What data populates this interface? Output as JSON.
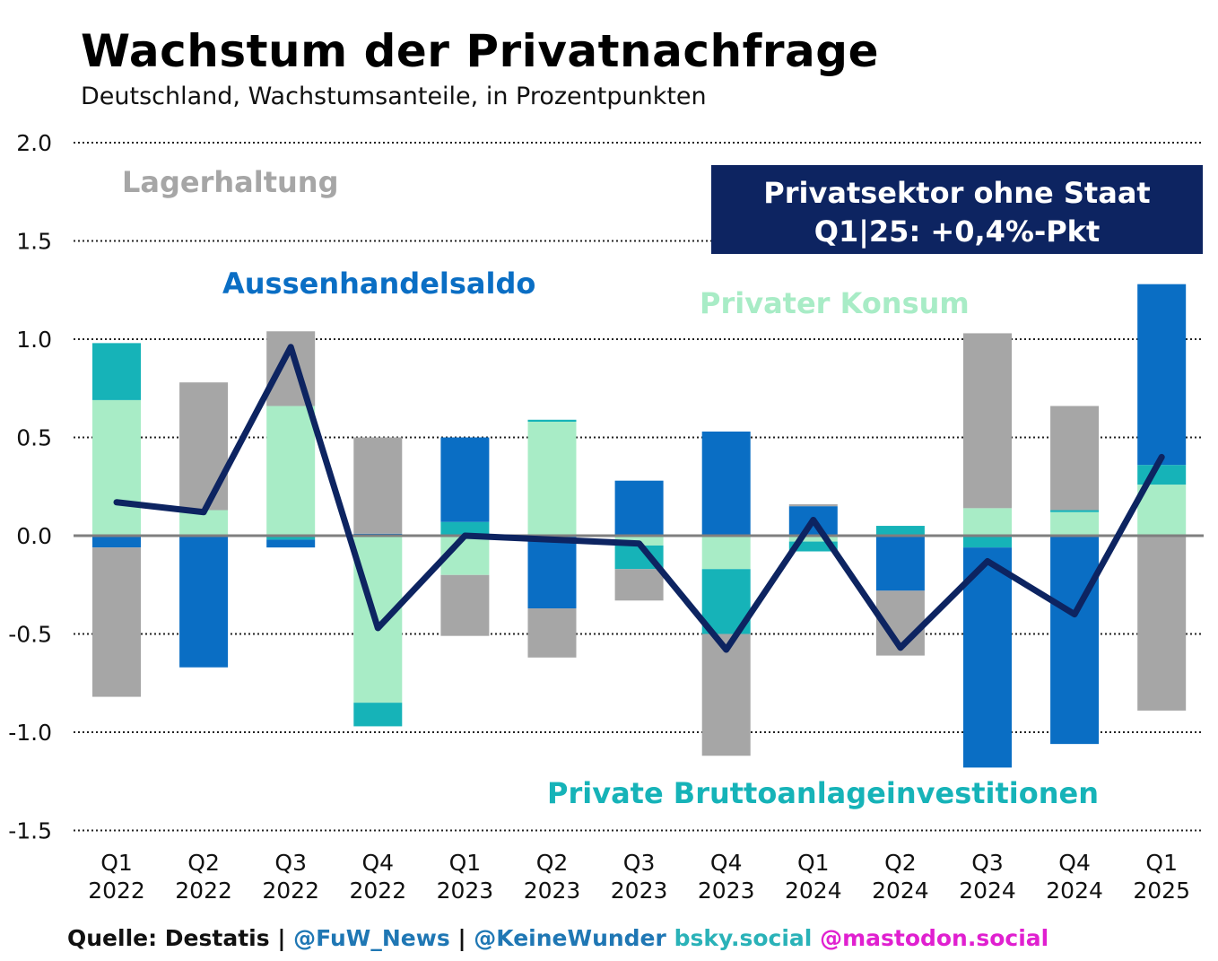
{
  "title": "Wachstum der Privatnachfrage",
  "subtitle": "Deutschland, Wachstumsanteile, in Prozentpunkten",
  "info_box": {
    "line1": "Privatsektor ohne Staat",
    "line2": "Q1|25: +0,4%-Pkt",
    "bg": "#0d2461",
    "fg": "#ffffff"
  },
  "footer": {
    "source": "Quelle: Destatis",
    "sep1": " | ",
    "twitter": "@FuW_News",
    "sep2": " | ",
    "handle": "@KeineWunder",
    "bsky": " bsky.social",
    "mastodon": " @mastodon.social"
  },
  "chart_data": {
    "type": "bar",
    "stacked": true,
    "categories": [
      [
        "Q1",
        "2022"
      ],
      [
        "Q2",
        "2022"
      ],
      [
        "Q3",
        "2022"
      ],
      [
        "Q4",
        "2022"
      ],
      [
        "Q1",
        "2023"
      ],
      [
        "Q2",
        "2023"
      ],
      [
        "Q3",
        "2023"
      ],
      [
        "Q4",
        "2023"
      ],
      [
        "Q1",
        "2024"
      ],
      [
        "Q2",
        "2024"
      ],
      [
        "Q3",
        "2024"
      ],
      [
        "Q4",
        "2024"
      ],
      [
        "Q1",
        "2025"
      ]
    ],
    "ylim": [
      -1.5,
      2.0
    ],
    "yticks": [
      "2.0",
      "1.5",
      "1.0",
      "0.5",
      "0.0",
      "-0.5",
      "-1.0",
      "-1.5"
    ],
    "ytick_values": [
      2.0,
      1.5,
      1.0,
      0.5,
      0.0,
      -0.5,
      -1.0,
      -1.5
    ],
    "grid": "dotted horizontal",
    "series": [
      {
        "name": "Privater Konsum",
        "color": "#a8ecc6",
        "values": [
          0.69,
          0.13,
          0.66,
          -0.85,
          -0.2,
          0.58,
          -0.05,
          -0.17,
          -0.03,
          0.0,
          0.14,
          0.12,
          0.26
        ]
      },
      {
        "name": "Private Bruttoanlageinvestitionen",
        "color": "#16b3b8",
        "values": [
          0.29,
          0.0,
          -0.02,
          -0.12,
          0.07,
          0.01,
          -0.12,
          -0.33,
          -0.05,
          0.05,
          -0.06,
          0.01,
          0.1
        ]
      },
      {
        "name": "Aussenhandelsaldo",
        "color": "#0a6ec4",
        "values": [
          -0.06,
          -0.67,
          -0.04,
          0.01,
          0.43,
          -0.37,
          0.28,
          0.53,
          0.15,
          -0.28,
          -1.12,
          -1.06,
          0.92
        ]
      },
      {
        "name": "Lagerhaltung",
        "color": "#a6a6a6",
        "values": [
          -0.76,
          0.65,
          0.38,
          0.49,
          -0.31,
          -0.25,
          -0.16,
          -0.62,
          0.01,
          -0.33,
          0.89,
          0.53,
          -0.89
        ]
      }
    ],
    "line": {
      "name": "Privatsektor ohne Staat",
      "color": "#0d2461",
      "values": [
        0.17,
        0.12,
        0.96,
        -0.47,
        0.0,
        -0.02,
        -0.04,
        -0.58,
        0.08,
        -0.57,
        -0.13,
        -0.4,
        0.4
      ]
    },
    "labels": [
      {
        "text": "Lagerhaltung",
        "color": "#a6a6a6"
      },
      {
        "text": "Aussenhandelsaldo",
        "color": "#0a6ec4"
      },
      {
        "text": "Privater Konsum",
        "color": "#a8ecc6"
      },
      {
        "text": "Private Bruttoanlageinvestitionen",
        "color": "#16b3b8"
      }
    ]
  }
}
